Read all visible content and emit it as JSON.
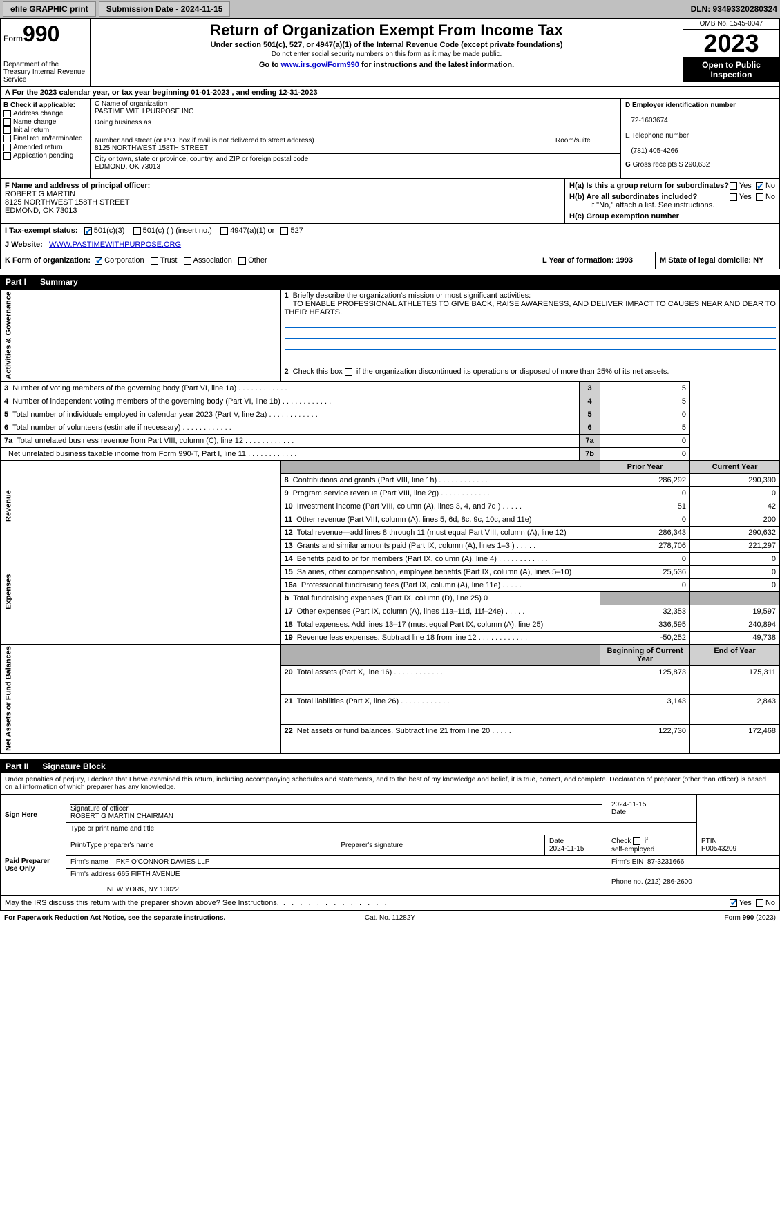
{
  "topbar": {
    "efile_label": "efile GRAPHIC print",
    "submission_label": "Submission Date - 2024-11-15",
    "dln_label": "DLN: 93493320280324"
  },
  "header": {
    "form_prefix": "Form",
    "form_no": "990",
    "dept": "Department of the Treasury Internal Revenue Service",
    "title": "Return of Organization Exempt From Income Tax",
    "subtitle": "Under section 501(c), 527, or 4947(a)(1) of the Internal Revenue Code (except private foundations)",
    "note": "Do not enter social security numbers on this form as it may be made public.",
    "goto_pre": "Go to ",
    "goto_link": "www.irs.gov/Form990",
    "goto_post": " for instructions and the latest information.",
    "omb": "OMB No. 1545-0047",
    "year": "2023",
    "inspect": "Open to Public Inspection"
  },
  "sectionA": {
    "text": "A  For the 2023 calendar year, or tax year beginning 01-01-2023    , and ending 12-31-2023"
  },
  "sectionB": {
    "label": "B Check if applicable:",
    "opts": [
      "Address change",
      "Name change",
      "Initial return",
      "Final return/terminated",
      "Amended return",
      "Application pending"
    ]
  },
  "sectionC": {
    "name_label": "C Name of organization",
    "name": "PASTIME WITH PURPOSE INC",
    "dba_label": "Doing business as",
    "addr_label": "Number and street (or P.O. box if mail is not delivered to street address)",
    "addr": "8125 NORTHWEST 158TH STREET",
    "suite_label": "Room/suite",
    "city_label": "City or town, state or province, country, and ZIP or foreign postal code",
    "city": "EDMOND, OK   73013"
  },
  "sectionD": {
    "ein_label": "D Employer identification number",
    "ein": "72-1603674",
    "phone_label": "E Telephone number",
    "phone": "(781) 405-4266",
    "gross_pre": "G",
    "gross_label": "Gross receipts $",
    "gross": "290,632"
  },
  "sectionF": {
    "label": "F  Name and address of principal officer:",
    "name": "ROBERT G MARTIN",
    "addr": "8125 NORTHWEST 158TH STREET",
    "city": "EDMOND, OK   73013"
  },
  "sectionH": {
    "ha": "H(a)  Is this a group return for subordinates?",
    "hb": "H(b)  Are all subordinates included?",
    "hb_note": "If \"No,\" attach a list. See instructions.",
    "hc": "H(c)  Group exemption number",
    "yes": "Yes",
    "no": "No"
  },
  "sectionI": {
    "label": "I     Tax-exempt status:",
    "c3": "501(c)(3)",
    "cn": "501(c) (  ) (insert no.)",
    "a1": "4947(a)(1) or",
    "s527": "527"
  },
  "sectionJ": {
    "label": "J     Website:",
    "value": "WWW.PASTIMEWITHPURPOSE.ORG"
  },
  "sectionK": {
    "label": "K Form of organization:",
    "corp": "Corporation",
    "trust": "Trust",
    "assoc": "Association",
    "other": "Other"
  },
  "sectionL": {
    "label": "L Year of formation: 1993"
  },
  "sectionM": {
    "label": "M State of legal domicile: NY"
  },
  "partI": {
    "num": "Part I",
    "title": "Summary"
  },
  "summary": {
    "q1_label": "Briefly describe the organization's mission or most significant activities:",
    "q1_text": "TO ENABLE PROFESSIONAL ATHLETES TO GIVE BACK, RAISE AWARENESS, AND DELIVER IMPACT TO CAUSES NEAR AND DEAR TO THEIR HEARTS.",
    "q2": "Check this box      if the organization discontinued its operations or disposed of more than 25% of its net assets.",
    "vlabels": [
      "Activities & Governance",
      "Revenue",
      "Expenses",
      "Net Assets or Fund Balances"
    ],
    "cols": {
      "prior": "Prior Year",
      "current": "Current Year",
      "boy": "Beginning of Current Year",
      "eoy": "End of Year"
    },
    "rows": [
      {
        "n": "3",
        "t": "Number of voting members of the governing body (Part VI, line 1a)",
        "lbl": "3",
        "v": "5",
        "d": 1
      },
      {
        "n": "4",
        "t": "Number of independent voting members of the governing body (Part VI, line 1b)",
        "lbl": "4",
        "v": "5",
        "d": 1
      },
      {
        "n": "5",
        "t": "Total number of individuals employed in calendar year 2023 (Part V, line 2a)",
        "lbl": "5",
        "v": "0",
        "d": 1
      },
      {
        "n": "6",
        "t": "Total number of volunteers (estimate if necessary)",
        "lbl": "6",
        "v": "5",
        "d": 1
      },
      {
        "n": "7a",
        "t": "Total unrelated business revenue from Part VIII, column (C), line 12",
        "lbl": "7a",
        "v": "0",
        "d": 1
      },
      {
        "n": "",
        "t": "Net unrelated business taxable income from Form 990-T, Part I, line 11",
        "lbl": "7b",
        "v": "0",
        "d": 1
      }
    ],
    "two_col": [
      {
        "n": "8",
        "t": "Contributions and grants (Part VIII, line 1h)",
        "p": "286,292",
        "c": "290,390",
        "d": 1
      },
      {
        "n": "9",
        "t": "Program service revenue (Part VIII, line 2g)",
        "p": "0",
        "c": "0",
        "d": 1
      },
      {
        "n": "10",
        "t": "Investment income (Part VIII, column (A), lines 3, 4, and 7d )",
        "p": "51",
        "c": "42",
        "d": 0
      },
      {
        "n": "11",
        "t": "Other revenue (Part VIII, column (A), lines 5, 6d, 8c, 9c, 10c, and 11e)",
        "p": "0",
        "c": "200",
        "d": -1
      },
      {
        "n": "12",
        "t": "Total revenue—add lines 8 through 11 (must equal Part VIII, column (A), line 12)",
        "p": "286,343",
        "c": "290,632",
        "d": -1
      },
      {
        "n": "13",
        "t": "Grants and similar amounts paid (Part IX, column (A), lines 1–3 )",
        "p": "278,706",
        "c": "221,297",
        "d": 0
      },
      {
        "n": "14",
        "t": "Benefits paid to or for members (Part IX, column (A), line 4)",
        "p": "0",
        "c": "0",
        "d": 1
      },
      {
        "n": "15",
        "t": "Salaries, other compensation, employee benefits (Part IX, column (A), lines 5–10)",
        "p": "25,536",
        "c": "0",
        "d": -1
      },
      {
        "n": "16a",
        "t": "Professional fundraising fees (Part IX, column (A), line 11e)",
        "p": "0",
        "c": "0",
        "d": 0
      },
      {
        "n": "b",
        "t": "Total fundraising expenses (Part IX, column (D), line 25) 0",
        "p": "",
        "c": "",
        "d": -1,
        "grey": 1
      },
      {
        "n": "17",
        "t": "Other expenses (Part IX, column (A), lines 11a–11d, 11f–24e)",
        "p": "32,353",
        "c": "19,597",
        "d": 0
      },
      {
        "n": "18",
        "t": "Total expenses. Add lines 13–17 (must equal Part IX, column (A), line 25)",
        "p": "336,595",
        "c": "240,894",
        "d": -1
      },
      {
        "n": "19",
        "t": "Revenue less expenses. Subtract line 18 from line 12",
        "p": "-50,252",
        "c": "49,738",
        "d": 1
      },
      {
        "n": "20",
        "t": "Total assets (Part X, line 16)",
        "p": "125,873",
        "c": "175,311",
        "d": 1
      },
      {
        "n": "21",
        "t": "Total liabilities (Part X, line 26)",
        "p": "3,143",
        "c": "2,843",
        "d": 1
      },
      {
        "n": "22",
        "t": "Net assets or fund balances. Subtract line 21 from line 20",
        "p": "122,730",
        "c": "172,468",
        "d": 0
      }
    ]
  },
  "partII": {
    "num": "Part II",
    "title": "Signature Block"
  },
  "sig": {
    "intro": "Under penalties of perjury, I declare that I have examined this return, including accompanying schedules and statements, and to the best of my knowledge and belief, it is true, correct, and complete. Declaration of preparer (other than officer) is based on all information of which preparer has any knowledge.",
    "sign_here": "Sign Here",
    "sig_officer": "Signature of officer",
    "officer_name": "ROBERT G MARTIN  CHAIRMAN",
    "type_name": "Type or print name and title",
    "date_label": "Date",
    "date": "2024-11-15",
    "paid": "Paid Preparer Use Only",
    "prep_name_label": "Print/Type preparer's name",
    "prep_sig_label": "Preparer's signature",
    "prep_date_lbl": "Date",
    "prep_date": "2024-11-15",
    "check_if": "Check        if self-employed",
    "ptin_label": "PTIN",
    "ptin": "P00543209",
    "firm_name_lbl": "Firm's name",
    "firm_name": "PKF O'CONNOR DAVIES LLP",
    "firm_ein_lbl": "Firm's EIN",
    "firm_ein": "87-3231666",
    "firm_addr_lbl": "Firm's address",
    "firm_addr": "665 FIFTH AVENUE",
    "firm_city": "NEW YORK, NY   10022",
    "phone_lbl": "Phone no.",
    "phone": "(212) 286-2600",
    "discuss": "May the IRS discuss this return with the preparer shown above? See Instructions.",
    "yes": "Yes",
    "no": "No"
  },
  "footer": {
    "left": "For Paperwork Reduction Act Notice, see the separate instructions.",
    "center": "Cat. No. 11282Y",
    "right": "Form 990 (2023)"
  }
}
